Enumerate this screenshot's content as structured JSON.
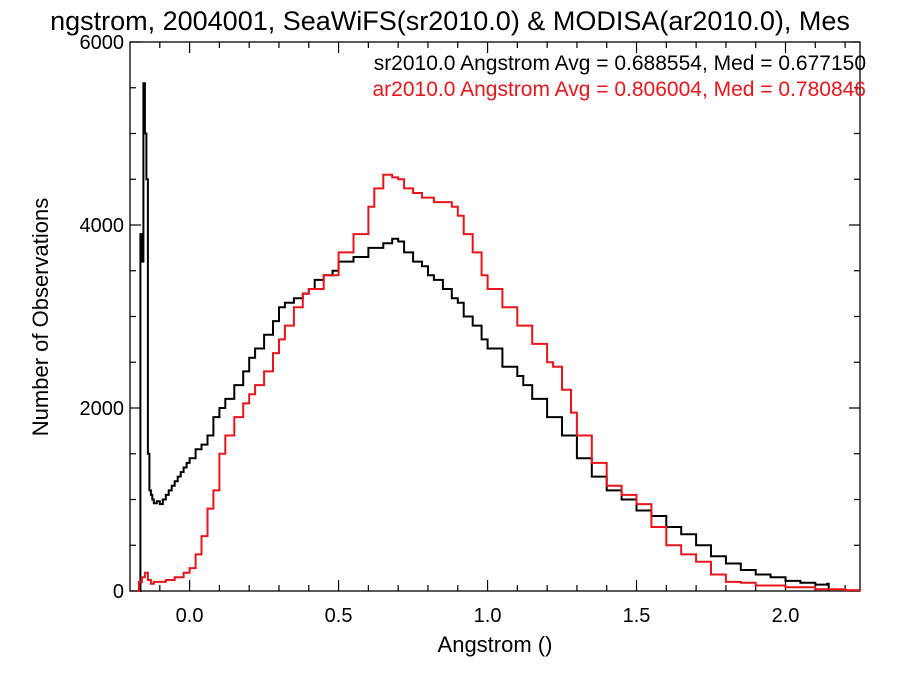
{
  "chart_data": {
    "type": "line",
    "title": "ngstrom, 2004001, SeaWiFS(sr2010.0) & MODISA(ar2010.0), Mes",
    "xlabel": "Angstrom ()",
    "ylabel": "Number of Observations",
    "xlim": [
      -0.2,
      2.25
    ],
    "ylim": [
      0,
      6000
    ],
    "xticks": [
      0.0,
      0.5,
      1.0,
      1.5,
      2.0
    ],
    "xtick_labels": [
      "0.0",
      "0.5",
      "1.0",
      "1.5",
      "2.0"
    ],
    "yticks": [
      0,
      2000,
      4000,
      6000
    ],
    "ytick_labels": [
      "0",
      "2000",
      "4000",
      "6000"
    ],
    "grid": false,
    "legend_position": "top-right",
    "series": [
      {
        "label": "sr2010.0 Angstrom Avg = 0.688554, Med = 0.677150",
        "color": "#000000",
        "x": [
          -0.175,
          -0.17,
          -0.165,
          -0.16,
          -0.155,
          -0.15,
          -0.145,
          -0.14,
          -0.135,
          -0.13,
          -0.125,
          -0.12,
          -0.11,
          -0.1,
          -0.09,
          -0.08,
          -0.07,
          -0.06,
          -0.05,
          -0.04,
          -0.03,
          -0.02,
          -0.01,
          0.0,
          0.02,
          0.04,
          0.06,
          0.08,
          0.1,
          0.12,
          0.15,
          0.18,
          0.2,
          0.22,
          0.25,
          0.28,
          0.3,
          0.32,
          0.35,
          0.38,
          0.4,
          0.42,
          0.45,
          0.48,
          0.5,
          0.55,
          0.6,
          0.65,
          0.68,
          0.7,
          0.72,
          0.75,
          0.78,
          0.8,
          0.82,
          0.85,
          0.88,
          0.9,
          0.92,
          0.95,
          0.98,
          1.0,
          1.05,
          1.1,
          1.12,
          1.15,
          1.2,
          1.25,
          1.3,
          1.35,
          1.4,
          1.45,
          1.5,
          1.55,
          1.6,
          1.65,
          1.7,
          1.75,
          1.8,
          1.85,
          1.9,
          1.95,
          2.0,
          2.05,
          2.1,
          2.14,
          2.145
        ],
        "y": [
          0,
          0,
          3900,
          3600,
          5550,
          5000,
          4500,
          1500,
          1100,
          1050,
          1000,
          960,
          980,
          950,
          1000,
          1050,
          1100,
          1150,
          1200,
          1250,
          1300,
          1350,
          1400,
          1450,
          1550,
          1600,
          1700,
          1900,
          2000,
          2100,
          2250,
          2400,
          2550,
          2650,
          2800,
          2950,
          3100,
          3150,
          3200,
          3250,
          3300,
          3400,
          3450,
          3500,
          3600,
          3650,
          3750,
          3800,
          3850,
          3820,
          3700,
          3600,
          3550,
          3450,
          3400,
          3300,
          3200,
          3150,
          3000,
          2900,
          2750,
          2650,
          2450,
          2350,
          2250,
          2100,
          1900,
          1700,
          1450,
          1250,
          1100,
          1000,
          880,
          820,
          700,
          620,
          500,
          380,
          300,
          230,
          180,
          150,
          110,
          90,
          70,
          80,
          0
        ]
      },
      {
        "label": "ar2010.0 Angstrom Avg = 0.806004, Med = 0.780846",
        "color": "#e8151b",
        "x": [
          -0.175,
          -0.17,
          -0.16,
          -0.15,
          -0.14,
          -0.13,
          -0.12,
          -0.1,
          -0.08,
          -0.05,
          -0.02,
          0.0,
          0.02,
          0.04,
          0.06,
          0.08,
          0.1,
          0.12,
          0.15,
          0.18,
          0.2,
          0.22,
          0.25,
          0.28,
          0.3,
          0.32,
          0.35,
          0.38,
          0.4,
          0.45,
          0.5,
          0.55,
          0.6,
          0.62,
          0.65,
          0.68,
          0.7,
          0.72,
          0.75,
          0.78,
          0.8,
          0.82,
          0.85,
          0.88,
          0.9,
          0.92,
          0.95,
          0.98,
          1.0,
          1.05,
          1.1,
          1.15,
          1.2,
          1.22,
          1.25,
          1.28,
          1.3,
          1.35,
          1.4,
          1.45,
          1.5,
          1.55,
          1.6,
          1.65,
          1.7,
          1.75,
          1.8,
          1.85,
          1.9,
          2.0,
          2.1,
          2.2,
          2.25
        ],
        "y": [
          0,
          100,
          150,
          200,
          120,
          80,
          100,
          100,
          120,
          150,
          200,
          250,
          400,
          600,
          900,
          1100,
          1500,
          1700,
          1900,
          2050,
          2150,
          2250,
          2400,
          2600,
          2750,
          2900,
          3100,
          3250,
          3300,
          3450,
          3700,
          3900,
          4200,
          4400,
          4550,
          4520,
          4500,
          4400,
          4350,
          4300,
          4300,
          4250,
          4250,
          4200,
          4100,
          3900,
          3700,
          3450,
          3300,
          3100,
          2900,
          2700,
          2500,
          2450,
          2200,
          1950,
          1700,
          1400,
          1150,
          1050,
          950,
          700,
          500,
          400,
          320,
          180,
          100,
          90,
          60,
          40,
          20,
          10,
          0
        ]
      }
    ]
  }
}
